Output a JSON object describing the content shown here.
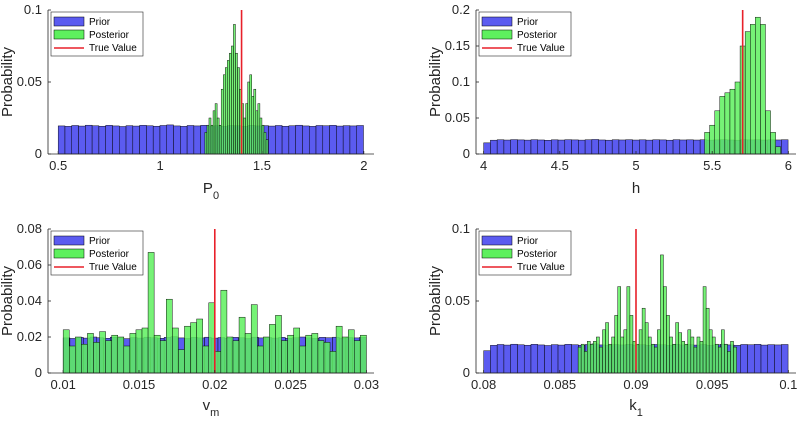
{
  "chart_data": [
    {
      "type": "bar",
      "id": "p0",
      "xlim": [
        0.45,
        2.05
      ],
      "ylim": [
        0,
        0.1
      ],
      "xticks": [
        "0.5",
        "1",
        "1.5",
        "2"
      ],
      "xtick_values": [
        0.5,
        1,
        1.5,
        2
      ],
      "yticks": [
        "0",
        "0.05",
        "0.1"
      ],
      "ytick_values": [
        0,
        0.05,
        0.1
      ],
      "ylabel": "Probability",
      "xlabel_main": "P",
      "xlabel_sub": "0",
      "true_value": 1.4,
      "legend": [
        "Prior",
        "Posterior",
        "True Value"
      ],
      "series": [
        {
          "name": "Prior",
          "start": 0.5,
          "width": 0.0333,
          "values": [
            0.0195,
            0.0192,
            0.0198,
            0.0194,
            0.02,
            0.0196,
            0.0193,
            0.0199,
            0.0195,
            0.0191,
            0.0197,
            0.0194,
            0.0199,
            0.0196,
            0.0193,
            0.0198,
            0.0202,
            0.0195,
            0.0192,
            0.0198,
            0.0195,
            0.0199,
            0.0194,
            0.0197,
            0.0193,
            0.0198,
            0.0196,
            0.0192,
            0.0199,
            0.0195,
            0.0197,
            0.0194,
            0.0198,
            0.0193,
            0.0196,
            0.02,
            0.0195,
            0.0192,
            0.0198,
            0.0196,
            0.0199,
            0.0194,
            0.0197,
            0.0195,
            0.0198
          ]
        },
        {
          "name": "Posterior",
          "start": 1.22,
          "width": 0.01,
          "values": [
            0.015,
            0.02,
            0.025,
            0.02,
            0.03,
            0.035,
            0.025,
            0.02,
            0.045,
            0.055,
            0.06,
            0.065,
            0.07,
            0.075,
            0.09,
            0.07,
            0.06,
            0.045,
            0.035,
            0.025,
            0.035,
            0.05,
            0.055,
            0.04,
            0.045,
            0.03,
            0.035,
            0.025,
            0.02,
            0.015,
            0.01
          ]
        }
      ]
    },
    {
      "type": "bar",
      "id": "h",
      "xlim": [
        3.95,
        6.05
      ],
      "ylim": [
        0,
        0.2
      ],
      "xticks": [
        "4",
        "4.5",
        "5",
        "5.5",
        "6"
      ],
      "xtick_values": [
        4,
        4.5,
        5,
        5.5,
        6
      ],
      "yticks": [
        "0",
        "0.05",
        "0.1",
        "0.15",
        "0.2"
      ],
      "ytick_values": [
        0,
        0.05,
        0.1,
        0.15,
        0.2
      ],
      "ylabel": "Probability",
      "xlabel_main": "h",
      "xlabel_sub": "",
      "true_value": 5.7,
      "legend": [
        "Prior",
        "Posterior",
        "True Value"
      ],
      "series": [
        {
          "name": "Prior",
          "start": 4.0,
          "width": 0.0444,
          "values": [
            0.0155,
            0.0192,
            0.0198,
            0.0194,
            0.02,
            0.0196,
            0.0193,
            0.0199,
            0.0195,
            0.0191,
            0.0197,
            0.0194,
            0.0199,
            0.0196,
            0.0193,
            0.0198,
            0.0202,
            0.0195,
            0.0192,
            0.0198,
            0.0195,
            0.0199,
            0.0194,
            0.0197,
            0.0193,
            0.0198,
            0.0196,
            0.0192,
            0.0199,
            0.0195,
            0.0197,
            0.0194,
            0.0198,
            0.0193,
            0.0196,
            0.02,
            0.0195,
            0.0192,
            0.0198,
            0.0196,
            0.0199,
            0.0194,
            0.0197,
            0.0195,
            0.0198
          ]
        },
        {
          "name": "Posterior",
          "start": 5.45,
          "width": 0.0333,
          "values": [
            0.03,
            0.04,
            0.06,
            0.08,
            0.085,
            0.09,
            0.1,
            0.15,
            0.17,
            0.18,
            0.19,
            0.18,
            0.06,
            0.03,
            0.01
          ]
        }
      ]
    },
    {
      "type": "bar",
      "id": "vm",
      "xlim": [
        0.009,
        0.0305
      ],
      "ylim": [
        0,
        0.08
      ],
      "xticks": [
        "0.01",
        "0.015",
        "0.02",
        "0.025",
        "0.03"
      ],
      "xtick_values": [
        0.01,
        0.015,
        0.02,
        0.025,
        0.03
      ],
      "yticks": [
        "0",
        "0.02",
        "0.04",
        "0.06",
        "0.08"
      ],
      "ytick_values": [
        0,
        0.02,
        0.04,
        0.06,
        0.08
      ],
      "ylabel": "Probability",
      "xlabel_main": "v",
      "xlabel_sub": "m",
      "true_value": 0.02,
      "legend": [
        "Prior",
        "Posterior",
        "True Value"
      ],
      "series": [
        {
          "name": "Prior",
          "start": 0.01,
          "width": 0.000444,
          "values": [
            0.0195,
            0.0192,
            0.0198,
            0.0194,
            0.02,
            0.0196,
            0.0193,
            0.0199,
            0.0195,
            0.0191,
            0.0197,
            0.0194,
            0.0199,
            0.0196,
            0.0193,
            0.0198,
            0.0202,
            0.0195,
            0.0192,
            0.0198,
            0.0195,
            0.0199,
            0.0194,
            0.0197,
            0.0193,
            0.0198,
            0.0196,
            0.0192,
            0.0199,
            0.0195,
            0.0197,
            0.0194,
            0.0198,
            0.0193,
            0.0196,
            0.02,
            0.0195,
            0.0192,
            0.0198,
            0.0196,
            0.0199,
            0.0194,
            0.0197,
            0.0195,
            0.0198
          ]
        },
        {
          "name": "Posterior",
          "start": 0.01,
          "width": 0.0004,
          "values": [
            0.024,
            0.015,
            0.02,
            0.016,
            0.022,
            0.017,
            0.023,
            0.018,
            0.021,
            0.02,
            0.015,
            0.022,
            0.024,
            0.025,
            0.067,
            0.021,
            0.018,
            0.041,
            0.025,
            0.013,
            0.026,
            0.028,
            0.03,
            0.015,
            0.039,
            0.012,
            0.046,
            0.02,
            0.018,
            0.031,
            0.022,
            0.038,
            0.015,
            0.02,
            0.027,
            0.032,
            0.018,
            0.021,
            0.025,
            0.015,
            0.021,
            0.022,
            0.018,
            0.017,
            0.012,
            0.026,
            0.02,
            0.024,
            0.018,
            0.021
          ]
        }
      ]
    },
    {
      "type": "bar",
      "id": "k1",
      "xlim": [
        0.0795,
        0.1005
      ],
      "ylim": [
        0,
        0.1
      ],
      "xticks": [
        "0.08",
        "0.085",
        "0.09",
        "0.095",
        "0.1"
      ],
      "xtick_values": [
        0.08,
        0.085,
        0.09,
        0.095,
        0.1
      ],
      "yticks": [
        "0",
        "0.05",
        "0.1"
      ],
      "ytick_values": [
        0,
        0.05,
        0.1
      ],
      "ylabel": "Probability",
      "xlabel_main": "k",
      "xlabel_sub": "1",
      "true_value": 0.09,
      "legend": [
        "Prior",
        "Posterior",
        "True Value"
      ],
      "series": [
        {
          "name": "Prior",
          "start": 0.08,
          "width": 0.000444,
          "values": [
            0.0155,
            0.0192,
            0.0198,
            0.0194,
            0.02,
            0.0196,
            0.0193,
            0.0199,
            0.0195,
            0.0191,
            0.0197,
            0.0194,
            0.0199,
            0.0196,
            0.0193,
            0.0198,
            0.0202,
            0.0195,
            0.0192,
            0.0198,
            0.0195,
            0.0199,
            0.0194,
            0.0197,
            0.0193,
            0.0198,
            0.0196,
            0.0192,
            0.0199,
            0.0195,
            0.0197,
            0.0194,
            0.0198,
            0.0193,
            0.0196,
            0.02,
            0.0195,
            0.0192,
            0.0198,
            0.0196,
            0.0199,
            0.0194,
            0.0197,
            0.0195,
            0.0198
          ]
        },
        {
          "name": "Posterior",
          "start": 0.0862,
          "width": 0.0002,
          "values": [
            0.018,
            0.02,
            0.015,
            0.022,
            0.02,
            0.022,
            0.025,
            0.018,
            0.03,
            0.035,
            0.02,
            0.025,
            0.04,
            0.06,
            0.025,
            0.03,
            0.06,
            0.04,
            0.022,
            0.02,
            0.03,
            0.045,
            0.035,
            0.025,
            0.02,
            0.018,
            0.03,
            0.082,
            0.06,
            0.04,
            0.025,
            0.02,
            0.035,
            0.028,
            0.022,
            0.02,
            0.03,
            0.025,
            0.018,
            0.025,
            0.022,
            0.06,
            0.045,
            0.03,
            0.025,
            0.02,
            0.018,
            0.03,
            0.02,
            0.015,
            0.022,
            0.018
          ]
        }
      ]
    }
  ],
  "colors": {
    "prior": "#5b5bf0",
    "posterior": "#5ef05e",
    "true_value": "#e8202a"
  }
}
